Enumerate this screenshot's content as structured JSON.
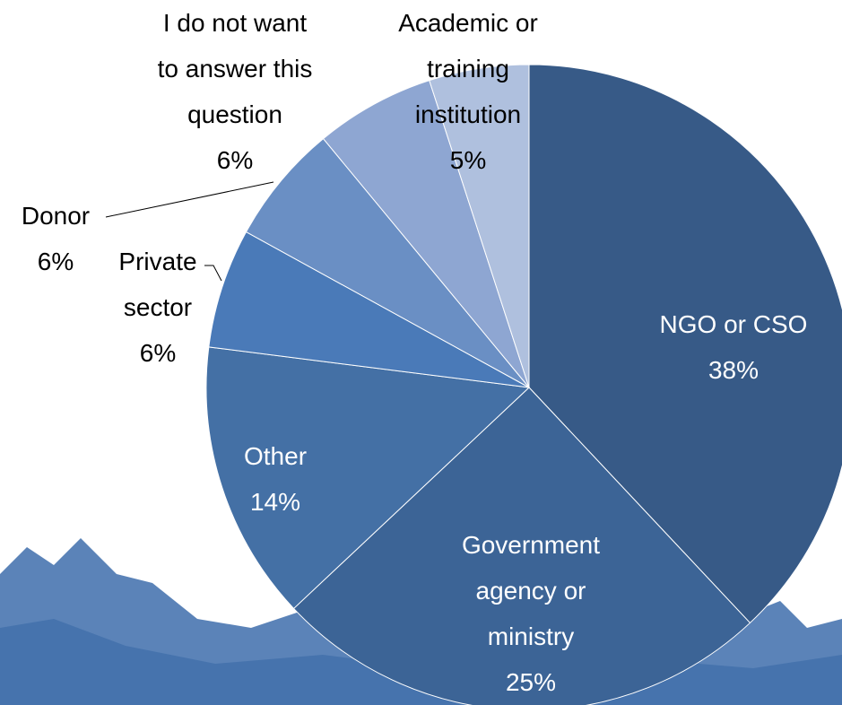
{
  "chart_data": {
    "type": "pie",
    "categories": [
      "NGO or CSO",
      "Government agency or ministry",
      "Other",
      "Private sector",
      "Donor",
      "I do not want to answer this question",
      "Academic or training institution"
    ],
    "values": [
      38,
      25,
      14,
      6,
      6,
      6,
      5
    ],
    "value_labels": [
      "38%",
      "25%",
      "14%",
      "6%",
      "6%",
      "6%",
      "5%"
    ],
    "colors": [
      "#375a87",
      "#3c6496",
      "#4470a5",
      "#4a7ab8",
      "#6a8fc4",
      "#8ea6d2",
      "#afc0de"
    ]
  }
}
